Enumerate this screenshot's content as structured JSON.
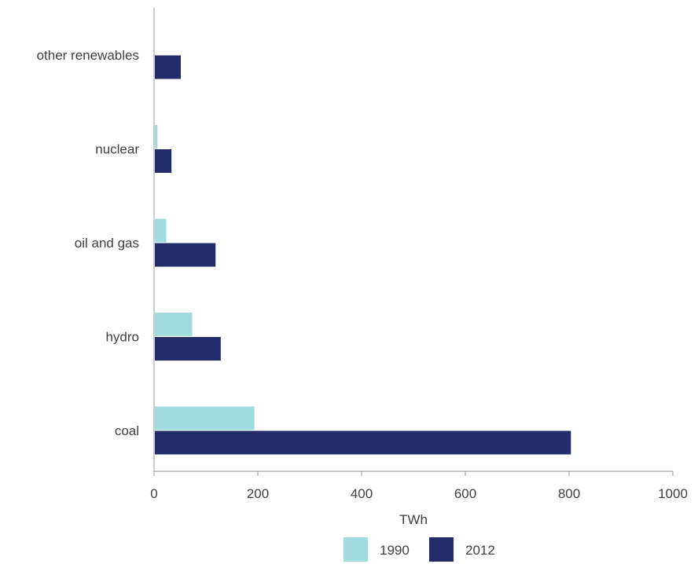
{
  "chart_data": {
    "type": "bar",
    "orientation": "horizontal",
    "title": "",
    "xlabel": "TWh",
    "ylabel": "",
    "xlim": [
      0,
      1000
    ],
    "xticks": [
      0,
      200,
      400,
      600,
      800,
      1000
    ],
    "categories": [
      "other renewables",
      "nuclear",
      "oil and gas",
      "hydro",
      "coal"
    ],
    "series": [
      {
        "name": "1990",
        "color": "#a0dce0",
        "values": [
          0,
          5,
          22,
          72,
          192
        ]
      },
      {
        "name": "2012",
        "color": "#232b6b",
        "values": [
          50,
          32,
          117,
          127,
          802
        ]
      }
    ],
    "grid": false,
    "legend": "bottom"
  }
}
